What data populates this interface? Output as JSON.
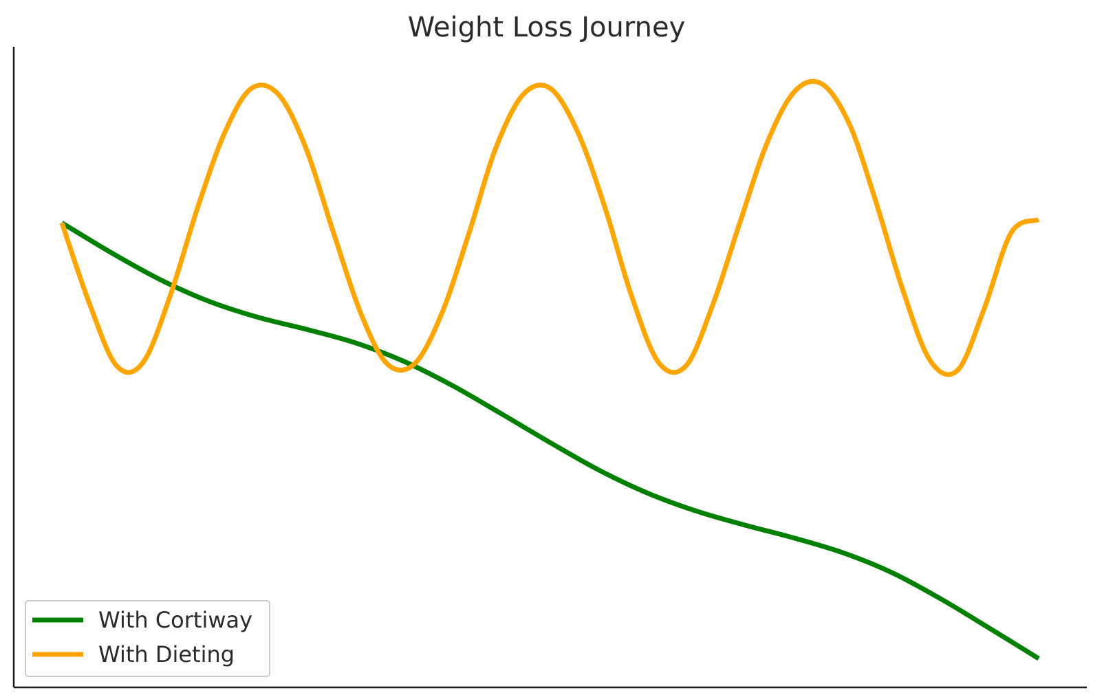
{
  "chart_data": {
    "type": "line",
    "title": "Weight Loss Journey",
    "xlabel": "",
    "ylabel": "",
    "xlim": [
      0,
      1
    ],
    "ylim": [
      0,
      1
    ],
    "grid": false,
    "axes": {
      "left_spine": true,
      "bottom_spine": true,
      "ticks_visible": false
    },
    "legend": {
      "placement": "lower-left"
    },
    "series": [
      {
        "name": "With Cortiway",
        "color": "#008000",
        "x": [
          0.0,
          0.05,
          0.1,
          0.15,
          0.2,
          0.25,
          0.3,
          0.35,
          0.4,
          0.45,
          0.5,
          0.55,
          0.6,
          0.65,
          0.7,
          0.75,
          0.8,
          0.85,
          0.9,
          0.95,
          1.0
        ],
        "y": [
          0.725,
          0.679,
          0.637,
          0.603,
          0.578,
          0.559,
          0.538,
          0.509,
          0.471,
          0.427,
          0.382,
          0.339,
          0.303,
          0.275,
          0.253,
          0.233,
          0.21,
          0.179,
          0.138,
          0.092,
          0.045
        ]
      },
      {
        "name": "With Dieting",
        "color": "#ffa500",
        "x": [
          0.0,
          0.028,
          0.056,
          0.083,
          0.111,
          0.139,
          0.167,
          0.194,
          0.222,
          0.25,
          0.278,
          0.306,
          0.333,
          0.361,
          0.389,
          0.417,
          0.444,
          0.472,
          0.5,
          0.528,
          0.556,
          0.583,
          0.611,
          0.639,
          0.667,
          0.694,
          0.722,
          0.75,
          0.778,
          0.806,
          0.833,
          0.861,
          0.889,
          0.917,
          0.944,
          0.972,
          1.0
        ],
        "y": [
          0.725,
          0.6,
          0.502,
          0.507,
          0.612,
          0.749,
          0.867,
          0.935,
          0.925,
          0.841,
          0.71,
          0.584,
          0.505,
          0.505,
          0.584,
          0.71,
          0.841,
          0.925,
          0.935,
          0.867,
          0.749,
          0.612,
          0.507,
          0.502,
          0.6,
          0.725,
          0.85,
          0.93,
          0.942,
          0.88,
          0.76,
          0.62,
          0.51,
          0.495,
          0.59,
          0.71,
          0.73
        ]
      }
    ]
  }
}
